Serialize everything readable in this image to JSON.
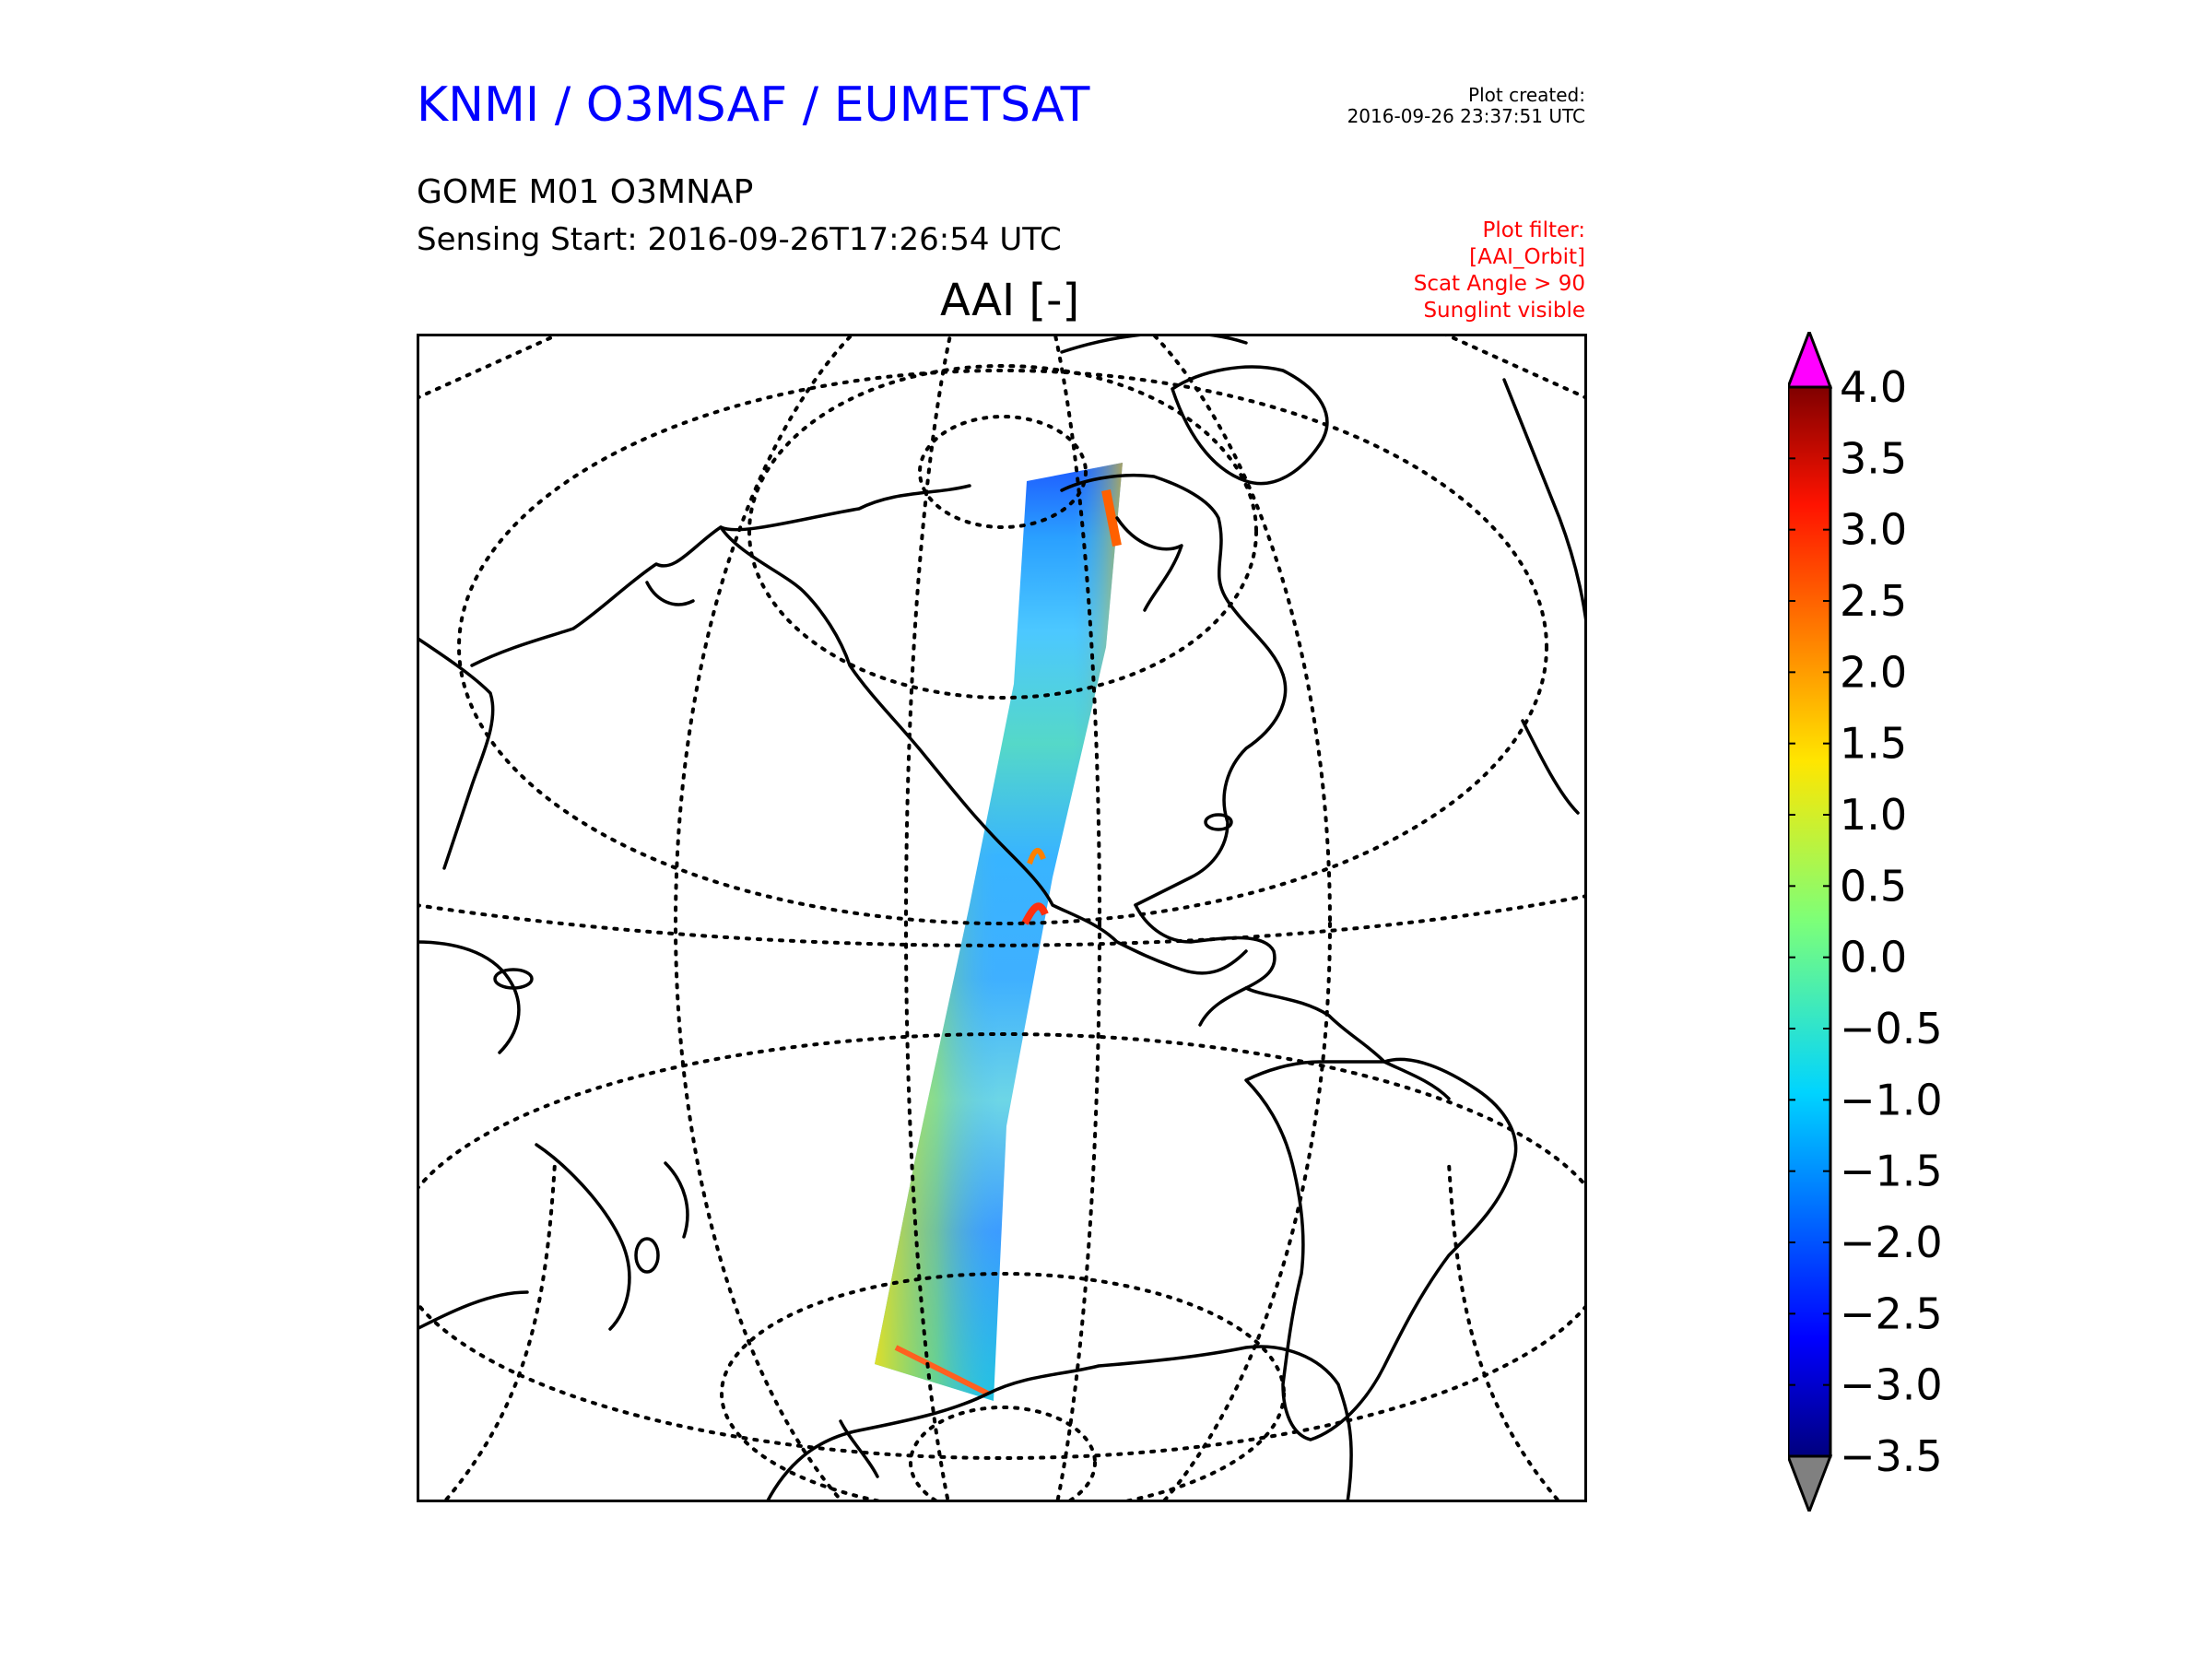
{
  "header": {
    "brand": "KNMI / O3MSAF / EUMETSAT",
    "created_label": "Plot created:",
    "created_value": "2016-09-26 23:37:51 UTC",
    "product": "GOME M01 O3MNAP",
    "sensing_start": "Sensing Start: 2016-09-26T17:26:54 UTC",
    "filter_lines": [
      "Plot filter:",
      "[AAI_Orbit]",
      "Scat Angle > 90",
      "Sunglint visible"
    ]
  },
  "plot": {
    "title": "AAI [-]"
  },
  "colorbar": {
    "min": -3.5,
    "max": 4.0,
    "ticks": [
      "4.0",
      "3.5",
      "3.0",
      "2.5",
      "2.0",
      "1.5",
      "1.0",
      "0.5",
      "0.0",
      "−0.5",
      "−1.0",
      "−1.5",
      "−2.0",
      "−2.5",
      "−3.0",
      "−3.5"
    ],
    "extend_over_color": "#ff00ff",
    "extend_under_color": "#808080",
    "colormap": "jet"
  },
  "colors": {
    "brand": "#0000ff",
    "filter": "#ff0000"
  }
}
